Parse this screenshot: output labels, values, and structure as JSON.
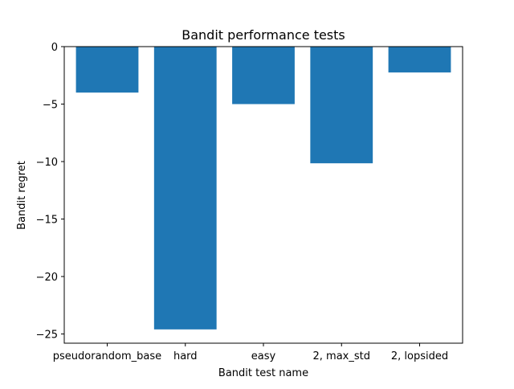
{
  "chart_data": {
    "type": "bar",
    "title": "Bandit performance tests",
    "xlabel": "Bandit test name",
    "ylabel": "Bandit regret",
    "categories": [
      "pseudorandom_base",
      "hard",
      "easy",
      "2, max_std",
      "2, lopsided"
    ],
    "values": [
      -4.0,
      -24.6,
      -5.0,
      -10.15,
      -2.25
    ],
    "ylim": [
      -25.8,
      0
    ],
    "yticks": [
      0,
      -5,
      -10,
      -15,
      -20,
      -25
    ],
    "ytick_labels": [
      "0",
      "−5",
      "−10",
      "−15",
      "−20",
      "−25"
    ],
    "grid": false,
    "bar_color": "#1f77b4"
  }
}
